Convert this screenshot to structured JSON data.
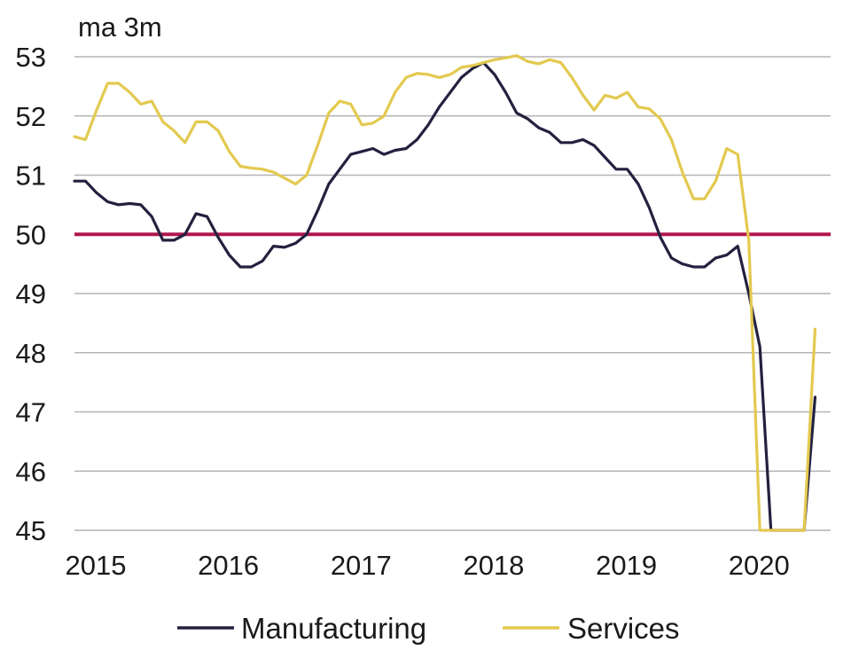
{
  "chart_data": {
    "type": "line",
    "title": "",
    "unit_label": "ma 3m",
    "xlabel": "",
    "ylabel": "",
    "ylim": [
      45,
      53
    ],
    "yticks": [
      45,
      46,
      47,
      48,
      49,
      50,
      51,
      52,
      53
    ],
    "xlim": [
      2015.0,
      2020.7
    ],
    "xticks": [
      {
        "value": 2015.0,
        "label": "2015"
      },
      {
        "value": 2016.0,
        "label": "2016"
      },
      {
        "value": 2017.0,
        "label": "2017"
      },
      {
        "value": 2018.0,
        "label": "2018"
      },
      {
        "value": 2019.0,
        "label": "2019"
      },
      {
        "value": 2020.0,
        "label": "2020"
      }
    ],
    "reference_line": {
      "value": 50,
      "color": "#b0174f"
    },
    "grid": true,
    "legend_position": "bottom",
    "series": [
      {
        "name": "Manufacturing",
        "color": "#23213f",
        "x": [
          2015.0,
          2015.083,
          2015.167,
          2015.25,
          2015.333,
          2015.417,
          2015.5,
          2015.583,
          2015.667,
          2015.75,
          2015.833,
          2015.917,
          2016.0,
          2016.083,
          2016.167,
          2016.25,
          2016.333,
          2016.417,
          2016.5,
          2016.583,
          2016.667,
          2016.75,
          2016.833,
          2016.917,
          2017.0,
          2017.083,
          2017.167,
          2017.25,
          2017.333,
          2017.417,
          2017.5,
          2017.583,
          2017.667,
          2017.75,
          2017.833,
          2017.917,
          2018.0,
          2018.083,
          2018.167,
          2018.25,
          2018.333,
          2018.417,
          2018.5,
          2018.583,
          2018.667,
          2018.75,
          2018.833,
          2018.917,
          2019.0,
          2019.083,
          2019.167,
          2019.25,
          2019.333,
          2019.417,
          2019.5,
          2019.583,
          2019.667,
          2019.75,
          2019.833,
          2019.917,
          2020.0,
          2020.083,
          2020.167,
          2020.25,
          2020.333,
          2020.417,
          2020.5,
          2020.583
        ],
        "values": [
          50.9,
          50.9,
          50.7,
          50.55,
          50.5,
          50.52,
          50.5,
          50.3,
          49.9,
          49.9,
          50.0,
          50.35,
          50.3,
          49.95,
          49.65,
          49.45,
          49.45,
          49.55,
          49.8,
          49.78,
          49.85,
          50.0,
          50.4,
          50.85,
          51.1,
          51.35,
          51.4,
          51.45,
          51.35,
          51.42,
          51.45,
          51.6,
          51.85,
          52.15,
          52.4,
          52.65,
          52.8,
          52.9,
          52.7,
          52.4,
          52.05,
          51.95,
          51.8,
          51.72,
          51.55,
          51.55,
          51.6,
          51.5,
          51.3,
          51.1,
          51.1,
          50.85,
          50.45,
          49.95,
          49.6,
          49.5,
          49.45,
          49.45,
          49.6,
          49.65,
          49.8,
          49.0,
          48.1,
          45.0,
          45.0,
          45.0,
          45.0,
          47.25
        ]
      },
      {
        "name": "Services",
        "color": "#e3c94f",
        "x": [
          2015.0,
          2015.083,
          2015.167,
          2015.25,
          2015.333,
          2015.417,
          2015.5,
          2015.583,
          2015.667,
          2015.75,
          2015.833,
          2015.917,
          2016.0,
          2016.083,
          2016.167,
          2016.25,
          2016.333,
          2016.417,
          2016.5,
          2016.583,
          2016.667,
          2016.75,
          2016.833,
          2016.917,
          2017.0,
          2017.083,
          2017.167,
          2017.25,
          2017.333,
          2017.417,
          2017.5,
          2017.583,
          2017.667,
          2017.75,
          2017.833,
          2017.917,
          2018.0,
          2018.083,
          2018.167,
          2018.25,
          2018.333,
          2018.417,
          2018.5,
          2018.583,
          2018.667,
          2018.75,
          2018.833,
          2018.917,
          2019.0,
          2019.083,
          2019.167,
          2019.25,
          2019.333,
          2019.417,
          2019.5,
          2019.583,
          2019.667,
          2019.75,
          2019.833,
          2019.917,
          2020.0,
          2020.083,
          2020.167,
          2020.25,
          2020.333,
          2020.417,
          2020.5,
          2020.583
        ],
        "values": [
          51.65,
          51.6,
          52.1,
          52.55,
          52.55,
          52.4,
          52.2,
          52.25,
          51.9,
          51.75,
          51.55,
          51.9,
          51.9,
          51.75,
          51.4,
          51.15,
          51.12,
          51.1,
          51.05,
          50.95,
          50.85,
          51.0,
          51.5,
          52.05,
          52.25,
          52.2,
          51.85,
          51.88,
          52.0,
          52.4,
          52.65,
          52.72,
          52.7,
          52.65,
          52.7,
          52.82,
          52.85,
          52.9,
          52.95,
          52.98,
          53.02,
          52.92,
          52.88,
          52.95,
          52.9,
          52.65,
          52.35,
          52.1,
          52.35,
          52.3,
          52.4,
          52.15,
          52.12,
          51.95,
          51.6,
          51.05,
          50.6,
          50.6,
          50.9,
          51.45,
          51.35,
          49.9,
          45.0,
          45.0,
          45.0,
          45.0,
          45.0,
          48.4
        ]
      }
    ]
  }
}
